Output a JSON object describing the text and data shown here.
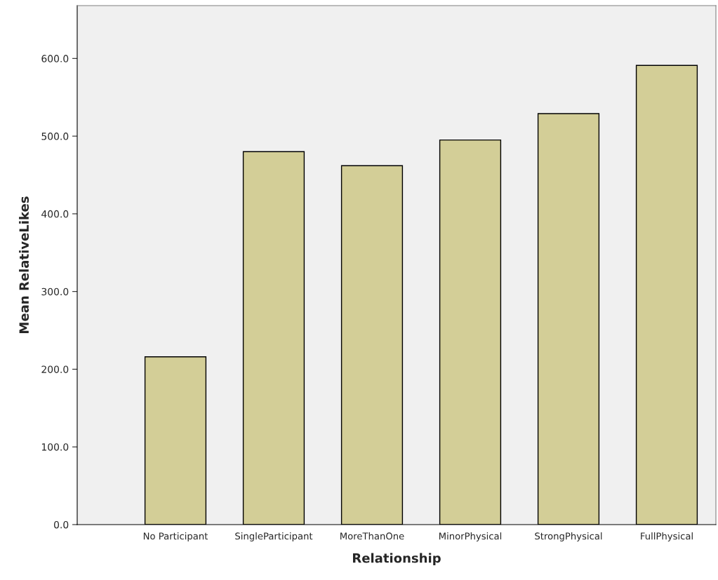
{
  "chart_data": {
    "type": "bar",
    "xlabel": "Relationship",
    "ylabel": "Mean RelativeLikes",
    "categories": [
      "No Participant",
      "SingleParticipant",
      "MoreThanOne",
      "MinorPhysical",
      "StrongPhysical",
      "FullPhysical"
    ],
    "values": [
      216,
      480,
      462,
      495,
      529,
      591
    ],
    "color": "#d3ce97",
    "ylim": [
      0,
      668
    ],
    "yticks": [
      {
        "value": 0,
        "label": "0.0"
      },
      {
        "value": 100,
        "label": "100.0"
      },
      {
        "value": 200,
        "label": "200.0"
      },
      {
        "value": 300,
        "label": "300.0"
      },
      {
        "value": 400,
        "label": "400.0"
      },
      {
        "value": 500,
        "label": "500.0"
      },
      {
        "value": 600,
        "label": "600.0"
      }
    ],
    "grid": false
  }
}
